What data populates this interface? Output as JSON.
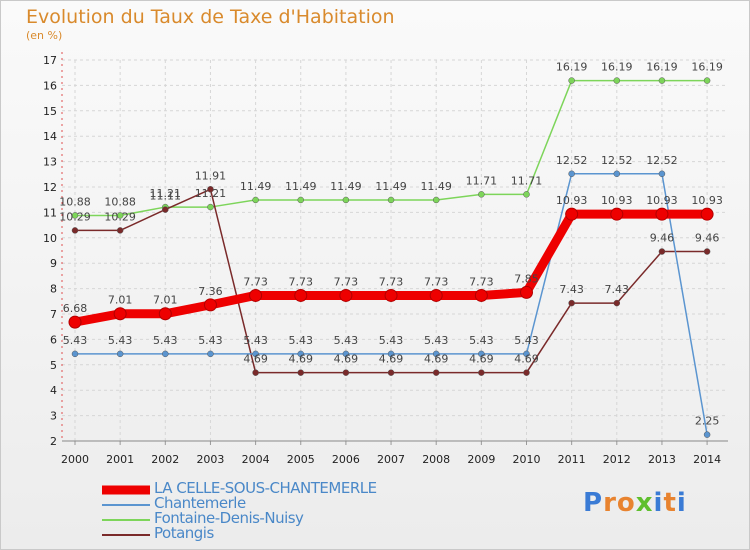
{
  "header": {
    "title": "Evolution du Taux de Taxe d'Habitation",
    "unit": "(en %)"
  },
  "logo": {
    "text": "Proxiti",
    "colors": [
      "#3a7bd5",
      "#e8832f",
      "#e8832f",
      "#5fbf2e",
      "#3a7bd5",
      "#e8832f",
      "#3a7bd5"
    ]
  },
  "chart_data": {
    "type": "line",
    "x": [
      "2000",
      "2001",
      "2002",
      "2003",
      "2004",
      "2005",
      "2006",
      "2007",
      "2008",
      "2009",
      "2010",
      "2011",
      "2012",
      "2013",
      "2014"
    ],
    "ylim": [
      2,
      17
    ],
    "yticks": [
      "2",
      "3",
      "4",
      "5",
      "6",
      "7",
      "8",
      "9",
      "10",
      "11",
      "12",
      "13",
      "14",
      "15",
      "16",
      "17"
    ],
    "grid": true,
    "legend_position": "bottom-left",
    "series": [
      {
        "name": "LA CELLE-SOUS-CHANTEMERLE",
        "color": "#ee0000",
        "bold": true,
        "values": [
          6.68,
          7.01,
          7.01,
          7.36,
          7.73,
          7.73,
          7.73,
          7.73,
          7.73,
          7.73,
          7.85,
          10.93,
          10.93,
          10.93,
          10.93
        ],
        "labels": [
          "6.68",
          "7.01",
          "7.01",
          "7.36",
          "7.73",
          "7.73",
          "7.73",
          "7.73",
          "7.73",
          "7.73",
          "7.85",
          "10.93",
          "10.93",
          "10.93",
          "10.93"
        ]
      },
      {
        "name": "Chantemerle",
        "color": "#5b95d0",
        "values": [
          5.43,
          5.43,
          5.43,
          5.43,
          5.43,
          5.43,
          5.43,
          5.43,
          5.43,
          5.43,
          5.43,
          12.52,
          12.52,
          12.52,
          2.25
        ],
        "labels": [
          "5.43",
          "5.43",
          "5.43",
          "5.43",
          "5.43",
          "5.43",
          "5.43",
          "5.43",
          "5.43",
          "5.43",
          "5.43",
          "12.52",
          "12.52",
          "12.52",
          "2.25"
        ]
      },
      {
        "name": "Fontaine-Denis-Nuisy",
        "color": "#7dd55a",
        "values": [
          10.88,
          10.88,
          11.21,
          11.21,
          11.49,
          11.49,
          11.49,
          11.49,
          11.49,
          11.71,
          11.71,
          16.19,
          16.19,
          16.19,
          16.19
        ],
        "labels": [
          "10.88",
          "10.88",
          "11.21",
          "11.21",
          "11.49",
          "11.49",
          "11.49",
          "11.49",
          "11.49",
          "11.71",
          "11.71",
          "16.19",
          "16.19",
          "16.19",
          "16.19"
        ]
      },
      {
        "name": "Potangis",
        "color": "#7a2a2a",
        "values": [
          10.29,
          10.29,
          11.11,
          11.91,
          4.69,
          4.69,
          4.69,
          4.69,
          4.69,
          4.69,
          4.69,
          7.43,
          7.43,
          9.46,
          9.46
        ],
        "labels": [
          "10.29",
          "10.29",
          "11.11",
          "11.91",
          "4.69",
          "4.69",
          "4.69",
          "4.69",
          "4.69",
          "4.69",
          "4.69",
          "7.43",
          "7.43",
          "9.46",
          "9.46"
        ]
      }
    ]
  }
}
